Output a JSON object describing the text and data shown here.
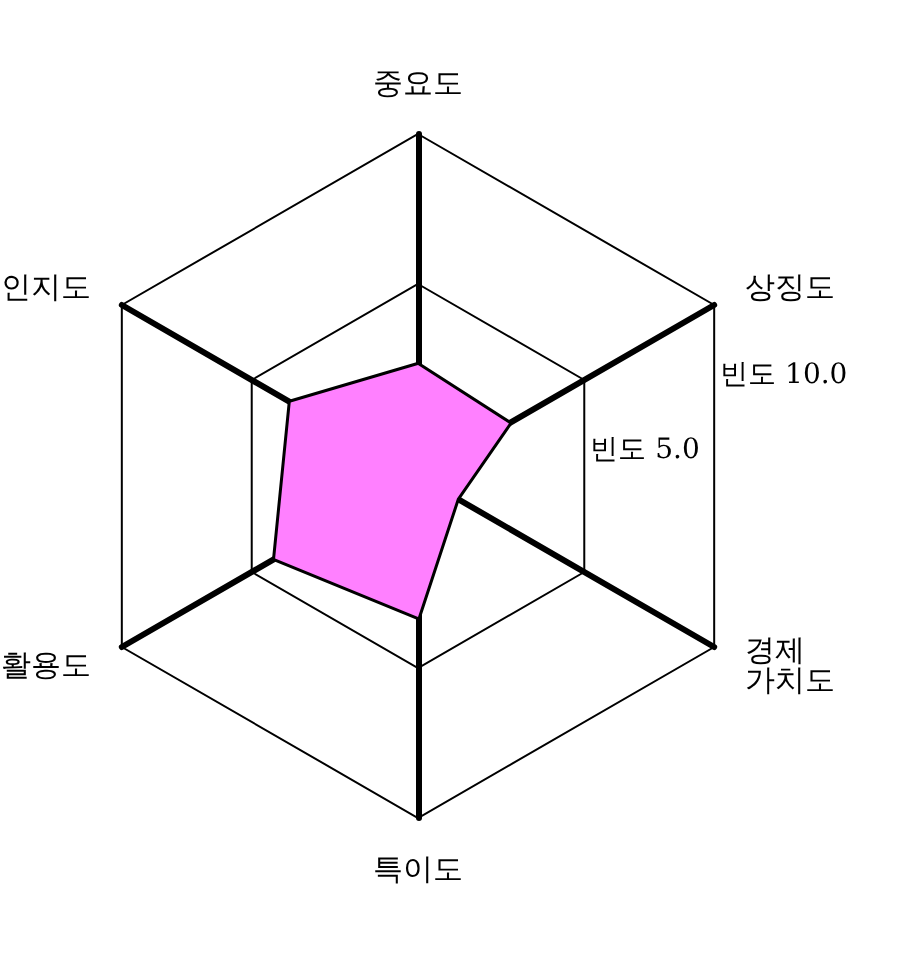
{
  "chart_data": {
    "type": "radar",
    "categories": [
      "중요도",
      "상징도",
      "경제\n가치도",
      "특이도",
      "활용도",
      "인지도"
    ],
    "series": [
      {
        "color": "#ff80ff",
        "values": [
          2.3,
          2.1,
          0.1,
          3.3,
          4.1,
          3.5
        ]
      }
    ],
    "ylim": [
      -1.4,
      10
    ],
    "yticks": [
      {
        "value": 5,
        "label": "빈도 5.0"
      },
      {
        "value": 10,
        "label": "빈도 10.0"
      }
    ],
    "grid": true,
    "marker": "none"
  }
}
